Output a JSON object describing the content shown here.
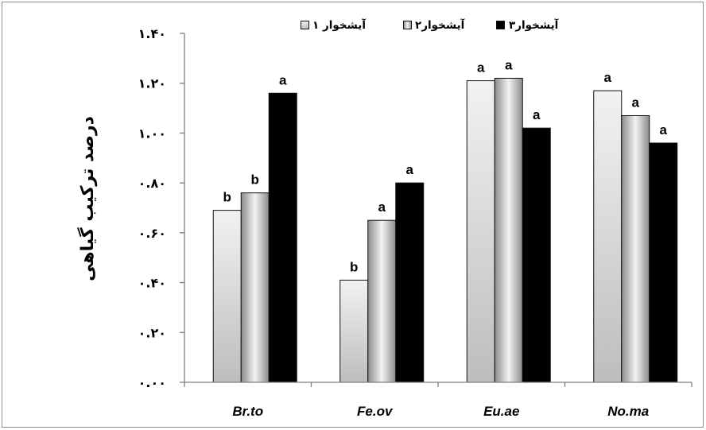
{
  "chart_data": {
    "type": "bar",
    "categories": [
      "Br.to",
      "Fe.ov",
      "Eu.ae",
      "No.ma"
    ],
    "series": [
      {
        "name": "آیشخوار ۱",
        "values": [
          0.69,
          0.41,
          1.21,
          1.17
        ],
        "labels": [
          "b",
          "b",
          "a",
          "a"
        ],
        "fill": [
          "#f2f2f2",
          "#bdbdbd"
        ]
      },
      {
        "name": "آیشخوار۲",
        "values": [
          0.76,
          0.65,
          1.22,
          1.07
        ],
        "labels": [
          "b",
          "a",
          "a",
          "a"
        ],
        "fill": [
          "#8a8a8a",
          "#f4f4f4",
          "#8a8a8a"
        ]
      },
      {
        "name": "آیشخوار۳",
        "values": [
          1.16,
          0.8,
          1.02,
          0.96
        ],
        "labels": [
          "a",
          "a",
          "a",
          "a"
        ],
        "fill": [
          "#000000"
        ]
      }
    ],
    "ylabel": "درصد ترکیب گیاهی",
    "ylim": [
      0,
      1.4
    ],
    "yticks": [
      0,
      0.2,
      0.4,
      0.6,
      0.8,
      1.0,
      1.2,
      1.4
    ],
    "ytick_labels": [
      "۰.۰۰",
      "۰.۲۰",
      "۰.۴۰",
      "۰.۶۰",
      "۰.۸۰",
      "۱.۰۰",
      "۱.۲۰",
      "۱.۴۰"
    ],
    "grid": false,
    "legend": "top"
  }
}
